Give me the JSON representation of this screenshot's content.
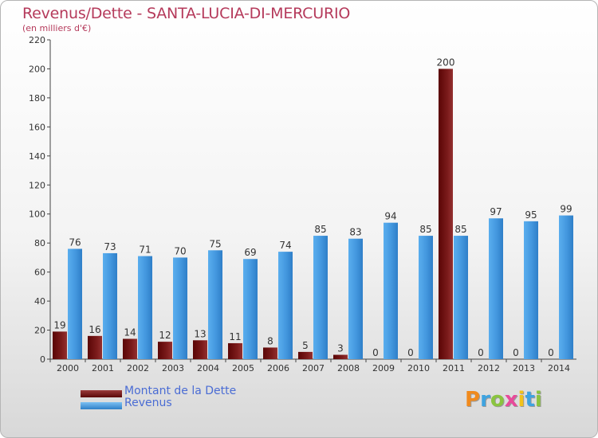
{
  "chart_data": {
    "type": "bar",
    "title": "Revenus/Dette - SANTA-LUCIA-DI-MERCURIO",
    "subtitle": "(en milliers d'€)",
    "categories": [
      "2000",
      "2001",
      "2002",
      "2003",
      "2004",
      "2005",
      "2006",
      "2007",
      "2008",
      "2009",
      "2010",
      "2011",
      "2012",
      "2013",
      "2014"
    ],
    "series": [
      {
        "name": "Montant de la Dette",
        "color": "#6e1010",
        "values": [
          19,
          16,
          14,
          12,
          13,
          11,
          8,
          5,
          3,
          0,
          0,
          200,
          0,
          0,
          0
        ]
      },
      {
        "name": "Revenus",
        "color": "#3f93da",
        "values": [
          76,
          73,
          71,
          70,
          75,
          69,
          74,
          85,
          83,
          94,
          85,
          85,
          97,
          95,
          99
        ]
      }
    ],
    "ylim": [
      0,
      220
    ],
    "yticks": [
      0,
      20,
      40,
      60,
      80,
      100,
      120,
      140,
      160,
      180,
      200,
      220
    ],
    "grid": false,
    "legend": "bottom-left"
  },
  "brand": {
    "logo": "Proxiti"
  }
}
